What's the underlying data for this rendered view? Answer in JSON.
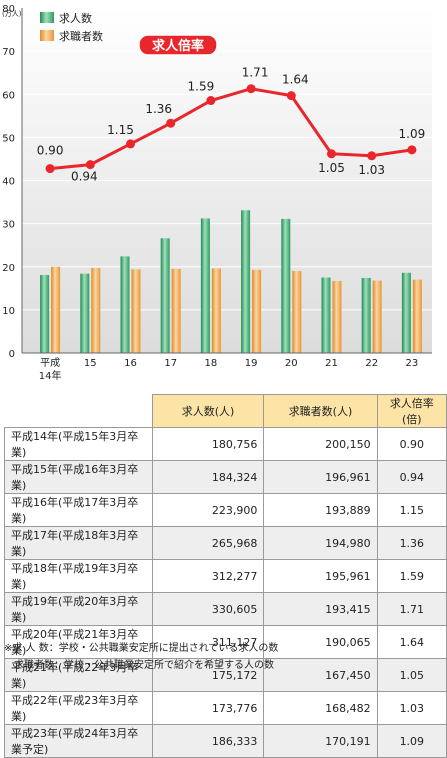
{
  "chart_data": {
    "type": "bar",
    "categories": [
      "平成\n14年",
      "15",
      "16",
      "17",
      "18",
      "19",
      "20",
      "21",
      "22",
      "23"
    ],
    "series": [
      {
        "name": "求人数",
        "values": [
          18.1,
          18.4,
          22.4,
          26.6,
          31.2,
          33.1,
          31.1,
          17.5,
          17.4,
          18.6
        ]
      },
      {
        "name": "求職者数",
        "values": [
          20.0,
          19.7,
          19.4,
          19.5,
          19.6,
          19.3,
          19.0,
          16.7,
          16.8,
          17.0
        ]
      }
    ],
    "line_series": {
      "name": "求人倍率",
      "values": [
        0.9,
        0.94,
        1.15,
        1.36,
        1.59,
        1.71,
        1.64,
        1.05,
        1.03,
        1.09
      ],
      "labels": [
        "0.90",
        "0.94",
        "1.15",
        "1.36",
        "1.59",
        "1.71",
        "1.64",
        "1.05",
        "1.03",
        "1.09"
      ]
    },
    "ylim": [
      0,
      80
    ],
    "yticks": [
      "0",
      "10",
      "20",
      "30",
      "40",
      "50",
      "60",
      "70",
      "80"
    ],
    "yunit": "(万人)",
    "legend_position": "top-left",
    "colors": {
      "jobs": "#3fb07a",
      "seekers": "#f0a44c",
      "ratio": "#e8262b",
      "ratio_tag": "#e8262b"
    }
  },
  "table": {
    "headers": [
      "求人数(人)",
      "求職者数(人)",
      "求人倍率(倍)"
    ],
    "rows": [
      {
        "label": "平成14年(平成15年3月卒業)",
        "jobs": "180,756",
        "seekers": "200,150",
        "ratio": "0.90"
      },
      {
        "label": "平成15年(平成16年3月卒業)",
        "jobs": "184,324",
        "seekers": "196,961",
        "ratio": "0.94"
      },
      {
        "label": "平成16年(平成17年3月卒業)",
        "jobs": "223,900",
        "seekers": "193,889",
        "ratio": "1.15"
      },
      {
        "label": "平成17年(平成18年3月卒業)",
        "jobs": "265,968",
        "seekers": "194,980",
        "ratio": "1.36"
      },
      {
        "label": "平成18年(平成19年3月卒業)",
        "jobs": "312,277",
        "seekers": "195,961",
        "ratio": "1.59"
      },
      {
        "label": "平成19年(平成20年3月卒業)",
        "jobs": "330,605",
        "seekers": "193,415",
        "ratio": "1.71"
      },
      {
        "label": "平成20年(平成21年3月卒業)",
        "jobs": "311,127",
        "seekers": "190,065",
        "ratio": "1.64"
      },
      {
        "label": "平成21年(平成22年3月卒業)",
        "jobs": "175,172",
        "seekers": "167,450",
        "ratio": "1.05"
      },
      {
        "label": "平成22年(平成23年3月卒業)",
        "jobs": "173,776",
        "seekers": "168,482",
        "ratio": "1.03"
      },
      {
        "label": "平成23年(平成24年3月卒業予定)",
        "jobs": "186,333",
        "seekers": "170,191",
        "ratio": "1.09"
      }
    ]
  },
  "notes": [
    "※求 人 数：学校・公共職業安定所に提出されている求人の数",
    "　求職者数：学校・公共職業安定所で紹介を希望する人の数"
  ]
}
